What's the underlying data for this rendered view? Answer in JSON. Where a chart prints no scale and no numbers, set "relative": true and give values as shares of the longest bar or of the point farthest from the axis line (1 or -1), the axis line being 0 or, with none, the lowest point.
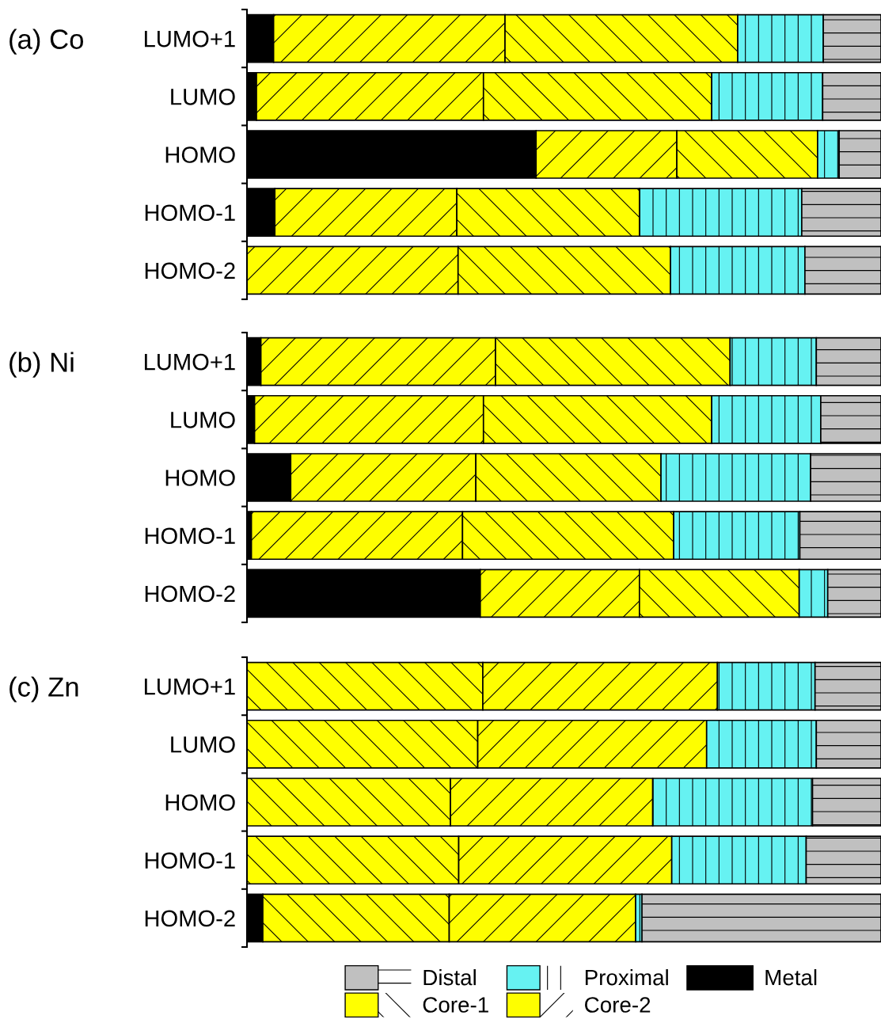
{
  "chart_data": [
    {
      "type": "bar",
      "title": "(a) Co",
      "orientation": "horizontal",
      "stacked": true,
      "relative": true,
      "tick_labels": "y",
      "categories": [
        "LUMO+1",
        "LUMO",
        "HOMO",
        "HOMO-1",
        "HOMO-2"
      ],
      "series": [
        {
          "color": "#000000",
          "values": [
            0.042,
            0.015,
            0.456,
            0.044,
            null
          ]
        },
        {
          "color": "#fefe00",
          "values": [
            0.365,
            0.358,
            0.222,
            0.287,
            0.333
          ]
        },
        {
          "color": "#ffff00",
          "values": [
            0.367,
            0.36,
            0.222,
            0.288,
            0.335
          ]
        },
        {
          "color": "#66f2f2",
          "values": [
            0.135,
            0.175,
            0.034,
            0.256,
            0.212
          ]
        },
        {
          "color": "#c0c0c0",
          "values": [
            0.091,
            0.092,
            0.066,
            0.125,
            0.12
          ]
        }
      ]
    },
    {
      "type": "bar",
      "title": "(b) Ni",
      "orientation": "horizontal",
      "stacked": true,
      "relative": true,
      "tick_labels": "y",
      "categories": [
        "LUMO+1",
        "LUMO",
        "HOMO",
        "HOMO-1",
        "HOMO-2"
      ],
      "series": [
        {
          "color": "#000000",
          "values": [
            0.022,
            0.012,
            0.069,
            0.007,
            0.368
          ]
        },
        {
          "color": "#fefe00",
          "values": [
            0.37,
            0.361,
            0.292,
            0.333,
            0.251
          ]
        },
        {
          "color": "#ffff00",
          "values": [
            0.37,
            0.36,
            0.292,
            0.333,
            0.252
          ]
        },
        {
          "color": "#66f2f2",
          "values": [
            0.136,
            0.172,
            0.236,
            0.199,
            0.045
          ]
        },
        {
          "color": "#c0c0c0",
          "values": [
            0.102,
            0.095,
            0.111,
            0.128,
            0.084
          ]
        }
      ]
    },
    {
      "type": "bar",
      "title": "(c) Zn",
      "orientation": "horizontal",
      "stacked": true,
      "relative": true,
      "tick_labels": "y",
      "legend": "bottom",
      "categories": [
        "LUMO+1",
        "LUMO",
        "HOMO",
        "HOMO-1",
        "HOMO-2"
      ],
      "series": [
        {
          "name": "Metal",
          "color": "#000000",
          "values": [
            null,
            null,
            null,
            null,
            0.025
          ]
        },
        {
          "name": "Core-1",
          "color": "#ffff00",
          "values": [
            0.372,
            0.364,
            0.321,
            0.334,
            0.294
          ]
        },
        {
          "name": "Core-2",
          "color": "#fefe00",
          "values": [
            0.37,
            0.361,
            0.319,
            0.336,
            0.294
          ]
        },
        {
          "name": "Proximal",
          "color": "#66f2f2",
          "values": [
            0.154,
            0.173,
            0.252,
            0.212,
            0.01
          ]
        },
        {
          "name": "Distal",
          "color": "#c0c0c0",
          "values": [
            0.104,
            0.102,
            0.108,
            0.118,
            0.377
          ]
        }
      ]
    }
  ]
}
